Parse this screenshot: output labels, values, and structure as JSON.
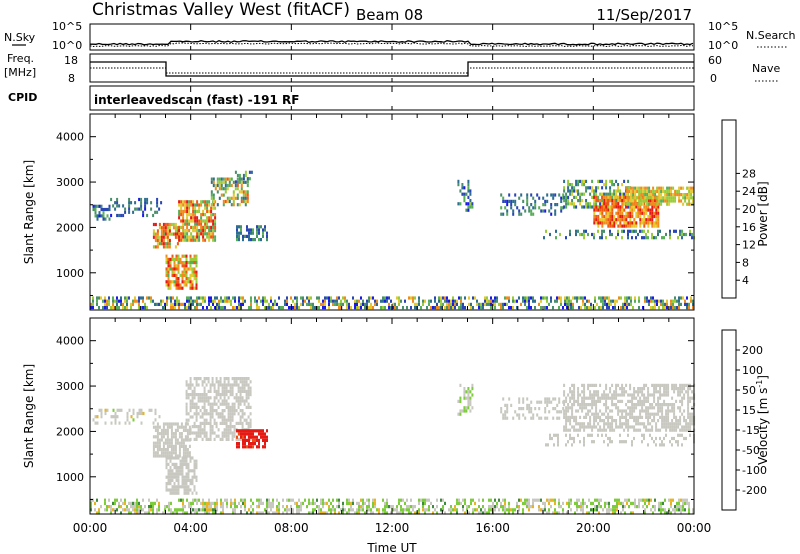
{
  "header": {
    "station": "Christmas Valley West (fitACF)",
    "beam": "Beam 08",
    "date": "11/Sep/2017"
  },
  "panels": {
    "noise": {
      "left_label": "N.Sky",
      "right_label": "N.Search",
      "tick_top": "10^5",
      "tick_bottom": "10^0"
    },
    "freq": {
      "left_label": "Freq.",
      "left_unit": "[MHz]",
      "left_tick_top": "18",
      "left_tick_bottom": "8",
      "right_label": "Nave",
      "right_tick_top": "60",
      "right_tick_bottom": "0"
    },
    "cpid": {
      "label": "CPID",
      "text": "interleavedscan (fast) -191 RF"
    }
  },
  "x_axis": {
    "label": "Time UT",
    "ticks": [
      "00:00",
      "04:00",
      "08:00",
      "12:00",
      "16:00",
      "20:00",
      "00:00"
    ]
  },
  "y_axis": {
    "label": "Slant Range [km]",
    "ticks": [
      "1000",
      "2000",
      "3000",
      "4000"
    ]
  },
  "colorbars": {
    "power": {
      "label": "Power [dB]",
      "ticks": [
        "4",
        "8",
        "12",
        "16",
        "20",
        "24",
        "28"
      ],
      "colors": [
        "#1a1ae6",
        "#2a46b4",
        "#2e6e8e",
        "#4a8f6c",
        "#58ad58",
        "#9acc3a",
        "#e6c830",
        "#f08c1e",
        "#ee5a14",
        "#e61a14"
      ]
    },
    "velocity": {
      "label": "Velocity [m s",
      "label_sup": "-1",
      "label_close": "]",
      "ticks": [
        "200",
        "100",
        "50",
        "15",
        "-15",
        "-50",
        "-100",
        "-200"
      ],
      "colors": [
        "#1a3cd2",
        "#2a6ea6",
        "#3c8c3c",
        "#7ccc3c",
        "#c8c8c0",
        "#e6b424",
        "#f08c1a",
        "#ee5014",
        "#e61a14"
      ]
    }
  },
  "chart_data": [
    {
      "type": "heatmap",
      "name": "Power",
      "xlabel": "Time UT",
      "ylabel": "Slant Range [km]",
      "xlim": [
        0,
        24
      ],
      "ylim": [
        180,
        4500
      ],
      "zlabel": "Power [dB]",
      "zlim": [
        0,
        30
      ],
      "regions": [
        {
          "t0": 0.0,
          "t1": 24.0,
          "r0": 200,
          "r1": 480,
          "dens": 0.55,
          "z": 12,
          "zvar": 12
        },
        {
          "t0": 0.1,
          "t1": 0.8,
          "r0": 2150,
          "r1": 2500,
          "dens": 0.7,
          "z": 8,
          "zvar": 6
        },
        {
          "t0": 0.8,
          "t1": 2.8,
          "r0": 2250,
          "r1": 2650,
          "dens": 0.35,
          "z": 6,
          "zvar": 5
        },
        {
          "t0": 2.5,
          "t1": 3.5,
          "r0": 1550,
          "r1": 2100,
          "dens": 0.8,
          "z": 22,
          "zvar": 8
        },
        {
          "t0": 3.5,
          "t1": 5.0,
          "r0": 1700,
          "r1": 2600,
          "dens": 0.75,
          "z": 20,
          "zvar": 9
        },
        {
          "t0": 4.8,
          "t1": 6.3,
          "r0": 2500,
          "r1": 3100,
          "dens": 0.6,
          "z": 16,
          "zvar": 9
        },
        {
          "t0": 5.6,
          "t1": 6.5,
          "r0": 3000,
          "r1": 3250,
          "dens": 0.3,
          "z": 10,
          "zvar": 6
        },
        {
          "t0": 3.0,
          "t1": 4.2,
          "r0": 650,
          "r1": 1400,
          "dens": 0.75,
          "z": 22,
          "zvar": 8
        },
        {
          "t0": 5.8,
          "t1": 7.0,
          "r0": 1700,
          "r1": 2050,
          "dens": 0.55,
          "z": 9,
          "zvar": 6
        },
        {
          "t0": 14.6,
          "t1": 15.2,
          "r0": 2400,
          "r1": 3050,
          "dens": 0.45,
          "z": 9,
          "zvar": 8
        },
        {
          "t0": 16.3,
          "t1": 18.8,
          "r0": 2300,
          "r1": 2750,
          "dens": 0.3,
          "z": 8,
          "zvar": 6
        },
        {
          "t0": 18.8,
          "t1": 21.5,
          "r0": 2450,
          "r1": 3050,
          "dens": 0.55,
          "z": 12,
          "zvar": 8
        },
        {
          "t0": 20.0,
          "t1": 22.6,
          "r0": 2050,
          "r1": 2700,
          "dens": 0.8,
          "z": 24,
          "zvar": 6
        },
        {
          "t0": 21.3,
          "t1": 24.0,
          "r0": 2500,
          "r1": 2900,
          "dens": 0.8,
          "z": 19,
          "zvar": 5
        },
        {
          "t0": 18.0,
          "t1": 24.0,
          "r0": 1750,
          "r1": 1950,
          "dens": 0.3,
          "z": 10,
          "zvar": 7
        }
      ]
    },
    {
      "type": "heatmap",
      "name": "Velocity",
      "xlabel": "Time UT",
      "ylabel": "Slant Range [km]",
      "xlim": [
        0,
        24
      ],
      "ylim": [
        180,
        4500
      ],
      "zlabel": "Velocity [m s-1]",
      "zlim": [
        -250,
        250
      ],
      "regions": [
        {
          "t0": 0.0,
          "t1": 24.0,
          "r0": 200,
          "r1": 520,
          "dens": 0.5,
          "z": 25,
          "zvar": 70
        },
        {
          "t0": 0.1,
          "t1": 2.8,
          "r0": 2150,
          "r1": 2500,
          "dens": 0.25,
          "z": 0,
          "zvar": 30
        },
        {
          "t0": 2.5,
          "t1": 4.0,
          "r0": 1450,
          "r1": 2200,
          "dens": 0.75,
          "z": 0,
          "zvar": 12
        },
        {
          "t0": 3.0,
          "t1": 4.2,
          "r0": 650,
          "r1": 1450,
          "dens": 0.7,
          "z": 0,
          "zvar": 12
        },
        {
          "t0": 3.8,
          "t1": 6.4,
          "r0": 1800,
          "r1": 3200,
          "dens": 0.6,
          "z": 0,
          "zvar": 18
        },
        {
          "t0": 5.8,
          "t1": 7.0,
          "r0": 1650,
          "r1": 2050,
          "dens": 0.8,
          "z": -210,
          "zvar": 20
        },
        {
          "t0": 14.6,
          "t1": 15.2,
          "r0": 2400,
          "r1": 3050,
          "dens": 0.4,
          "z": 20,
          "zvar": 40
        },
        {
          "t0": 16.3,
          "t1": 18.8,
          "r0": 2300,
          "r1": 2750,
          "dens": 0.3,
          "z": 0,
          "zvar": 25
        },
        {
          "t0": 18.8,
          "t1": 24.0,
          "r0": 2050,
          "r1": 3050,
          "dens": 0.6,
          "z": 0,
          "zvar": 10
        },
        {
          "t0": 18.0,
          "t1": 24.0,
          "r0": 1700,
          "r1": 1950,
          "dens": 0.3,
          "z": 0,
          "zvar": 10
        }
      ]
    }
  ]
}
